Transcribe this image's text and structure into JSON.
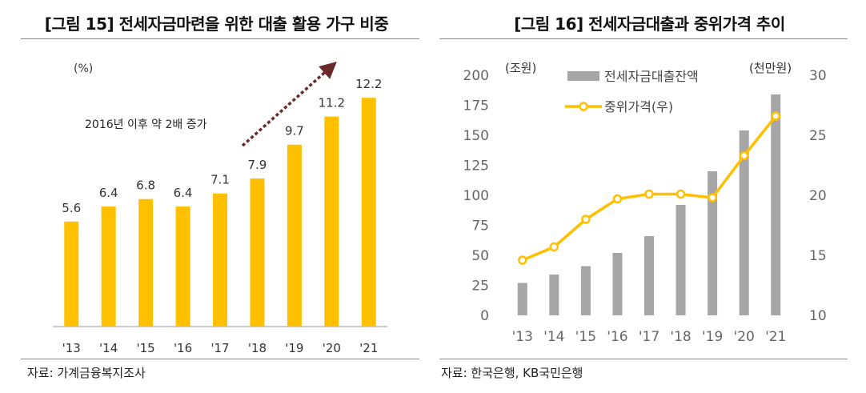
{
  "left": {
    "title": "[그림 15] 전세자금마련을 위한 대출 활용 가구 비중",
    "source": "자료: 가계금융복지조사",
    "chart_data": {
      "type": "bar",
      "unit_label": "(%)",
      "annotation": "2016년 이후 약 2배 증가",
      "categories": [
        "'13",
        "'14",
        "'15",
        "'16",
        "'17",
        "'18",
        "'19",
        "'20",
        "'21"
      ],
      "values": [
        5.6,
        6.4,
        6.8,
        6.4,
        7.1,
        7.9,
        9.7,
        11.2,
        12.2
      ],
      "ylim": [
        0,
        14
      ],
      "grid": false,
      "color": "#FFC000"
    }
  },
  "right": {
    "title": "[그림 16] 전세자금대출과 중위가격 추이",
    "source": "자료: 한국은행, KB국민은행",
    "chart_data": {
      "type": "bar+line",
      "categories": [
        "'13",
        "'14",
        "'15",
        "'16",
        "'17",
        "'18",
        "'19",
        "'20",
        "'21"
      ],
      "left_axis": {
        "label": "(조원)",
        "ylim": [
          0,
          200
        ],
        "ticks": [
          0,
          25,
          50,
          75,
          100,
          125,
          150,
          175,
          200
        ]
      },
      "right_axis": {
        "label": "(천만원)",
        "ylim": [
          10,
          30
        ],
        "ticks": [
          10,
          15,
          20,
          25,
          30
        ]
      },
      "legend_position": "top-center",
      "series": [
        {
          "name": "전세자금대출잔액",
          "type": "bar",
          "axis": "left",
          "color": "#A6A6A6",
          "values": [
            27,
            34,
            41,
            52,
            66,
            92,
            120,
            154,
            184
          ]
        },
        {
          "name": "중위가격(우)",
          "type": "line",
          "axis": "right",
          "color": "#FFC000",
          "values": [
            14.6,
            15.7,
            18.0,
            19.7,
            20.1,
            20.1,
            19.8,
            23.3,
            26.6
          ]
        }
      ],
      "grid": false
    }
  }
}
